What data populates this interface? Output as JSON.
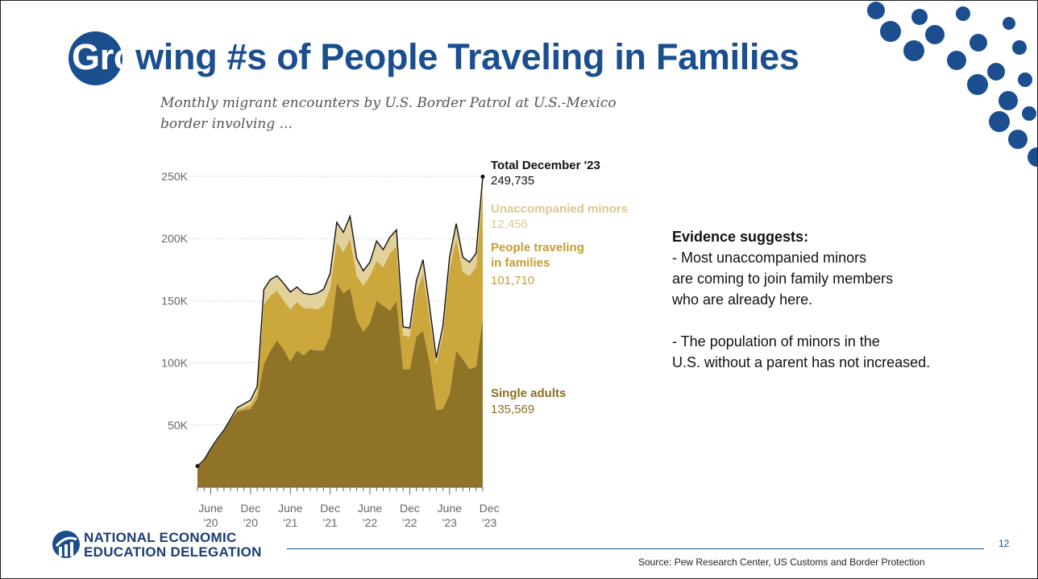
{
  "slide": {
    "title": "Growing #s of People Traveling in Families",
    "title_highlight": "Gro",
    "subtitle": "Monthly migrant encounters by U.S. Border Patrol at U.S.-Mexico border involving ...",
    "evidence": {
      "heading": "Evidence suggests:",
      "point1_line1": "-   Most unaccompanied minors",
      "point1_line2": "are coming to join family members",
      "point1_line3": "who are already here.",
      "point2_line1": "-   The population of minors in the",
      "point2_line2": "U.S. without a parent has not increased."
    },
    "logo": {
      "line1": "NATIONAL ECONOMIC",
      "line2": "EDUCATION DELEGATION"
    },
    "page_number": "12",
    "source": "Source: Pew Research Center, US Customs and Border Protection",
    "colors": {
      "brand": "#1a4e8f",
      "single": "#8f7428",
      "families": "#cca83c",
      "minors": "#e3d19b",
      "total_line": "#111111"
    }
  },
  "chart_data": {
    "type": "area",
    "stacked": true,
    "ylim": [
      0,
      250000
    ],
    "yticks": [
      {
        "value": 50000,
        "label": "50K"
      },
      {
        "value": 100000,
        "label": "100K"
      },
      {
        "value": 150000,
        "label": "150K"
      },
      {
        "value": 200000,
        "label": "200K"
      },
      {
        "value": 250000,
        "label": "250K"
      }
    ],
    "xticks": [
      {
        "index": 2,
        "line1": "June",
        "line2": "'20"
      },
      {
        "index": 8,
        "line1": "Dec",
        "line2": "'20"
      },
      {
        "index": 14,
        "line1": "June",
        "line2": "'21"
      },
      {
        "index": 20,
        "line1": "Dec",
        "line2": "'21"
      },
      {
        "index": 26,
        "line1": "June",
        "line2": "'22"
      },
      {
        "index": 32,
        "line1": "Dec",
        "line2": "'22"
      },
      {
        "index": 38,
        "line1": "June",
        "line2": "'23"
      },
      {
        "index": 44,
        "line1": "Dec",
        "line2": "'23"
      }
    ],
    "series": [
      {
        "name": "Single adults",
        "values": [
          16000,
          21000,
          30000,
          38000,
          45000,
          54000,
          61000,
          62000,
          63000,
          71000,
          99000,
          110000,
          118000,
          111000,
          101000,
          110000,
          106000,
          111000,
          110000,
          110000,
          122000,
          164000,
          156000,
          160000,
          135000,
          125000,
          132000,
          150000,
          146000,
          142000,
          150000,
          95000,
          95000,
          121000,
          126000,
          100000,
          62000,
          63000,
          75000,
          110000,
          103000,
          95000,
          97000,
          135569
        ]
      },
      {
        "name": "People traveling in families",
        "values": [
          500,
          500,
          500,
          500,
          500,
          500,
          1000,
          2000,
          3000,
          5000,
          48000,
          44000,
          40000,
          39000,
          42000,
          39000,
          38000,
          33000,
          33000,
          36000,
          38000,
          33000,
          33000,
          40000,
          35000,
          37000,
          38000,
          32000,
          31000,
          46000,
          44000,
          27000,
          26000,
          36000,
          46000,
          36000,
          37000,
          60000,
          100000,
          90000,
          70000,
          75000,
          80000,
          101710
        ]
      },
      {
        "name": "Unaccompanied minors",
        "values": [
          500,
          500,
          500,
          500,
          500,
          500,
          2000,
          3000,
          4000,
          5000,
          12000,
          13000,
          12000,
          14000,
          14000,
          12000,
          12000,
          11000,
          13000,
          13000,
          12000,
          16000,
          16000,
          18000,
          14000,
          12000,
          11000,
          16000,
          14000,
          13000,
          13000,
          7000,
          7000,
          9000,
          11000,
          9000,
          5000,
          7000,
          10000,
          12000,
          12000,
          11000,
          11000,
          12456
        ]
      }
    ],
    "total_line": [
      17000,
      22000,
      31000,
      39000,
      46000,
      55000,
      64000,
      67000,
      70000,
      81000,
      159000,
      167000,
      170000,
      164000,
      157000,
      161000,
      156000,
      155000,
      156000,
      159000,
      172000,
      213000,
      205000,
      218000,
      184000,
      174000,
      181000,
      198000,
      191000,
      201000,
      207000,
      129000,
      128000,
      166000,
      183000,
      145000,
      104000,
      130000,
      185000,
      212000,
      185000,
      181000,
      188000,
      249735
    ],
    "labels": {
      "total_title": "Total December '23",
      "total_value": "249,735",
      "minors_title": "Unaccompanied minors",
      "minors_value": "12,456",
      "families_title_1": "People traveling",
      "families_title_2": "in families",
      "families_value": "101,710",
      "single_title": "Single adults",
      "single_value": "135,569"
    }
  }
}
